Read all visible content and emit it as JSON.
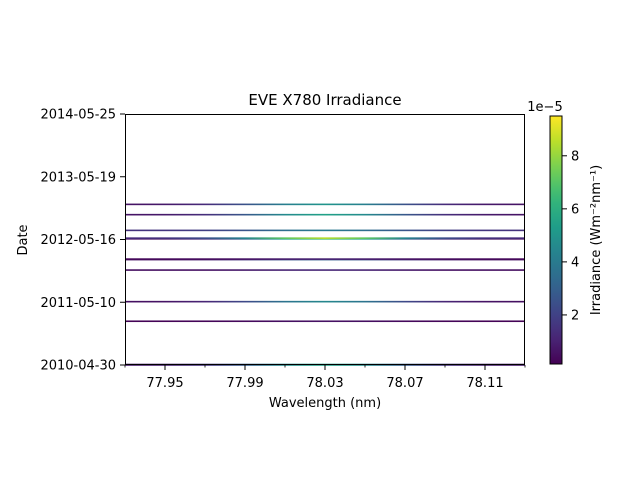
{
  "chart_data": {
    "type": "heatmap",
    "title": "EVE X780 Irradiance",
    "xlabel": "Wavelength (nm)",
    "ylabel": "Date",
    "xlim": [
      77.93,
      78.13
    ],
    "x_ticks": [
      "77.95",
      "77.99",
      "78.03",
      "78.07",
      "78.11"
    ],
    "x_tick_values": [
      77.95,
      77.99,
      78.03,
      78.07,
      78.11
    ],
    "ylim": [
      "2010-04-30",
      "2014-05-25"
    ],
    "y_ticks": [
      "2010-04-30",
      "2011-05-10",
      "2012-05-16",
      "2013-05-19",
      "2014-05-25"
    ],
    "colorbar": {
      "label": "Irradiance (Wm⁻²nm⁻¹)",
      "offset_text": "1e−5",
      "colormap": "viridis",
      "range": [
        0.15,
        9.5
      ],
      "ticks": [
        "2",
        "4",
        "6",
        "8"
      ],
      "tick_values": [
        2,
        4,
        6,
        8
      ]
    },
    "lines": [
      {
        "date": "2010-04-30",
        "peak": 5.5,
        "edge": 0.8
      },
      {
        "date": "2010-05-03",
        "peak": 5.5,
        "edge": 0.8
      },
      {
        "date": "2011-01-14",
        "peak": 0.6,
        "edge": 0.2
      },
      {
        "date": "2011-05-10",
        "peak": 4.5,
        "edge": 0.5
      },
      {
        "date": "2011-11-13",
        "peak": 1.2,
        "edge": 0.5
      },
      {
        "date": "2012-01-14",
        "peak": 3.0,
        "edge": 0.5
      },
      {
        "date": "2012-01-17",
        "peak": 1.0,
        "edge": 0.3
      },
      {
        "date": "2012-05-16",
        "peak": 6.5,
        "edge": 0.4
      },
      {
        "date": "2012-05-20",
        "peak": 8.5,
        "edge": 1.2
      },
      {
        "date": "2012-07-05",
        "peak": 4.0,
        "edge": 1.5
      },
      {
        "date": "2012-10-06",
        "peak": 5.5,
        "edge": 0.6
      },
      {
        "date": "2012-12-06",
        "peak": 5.0,
        "edge": 0.6
      }
    ]
  }
}
